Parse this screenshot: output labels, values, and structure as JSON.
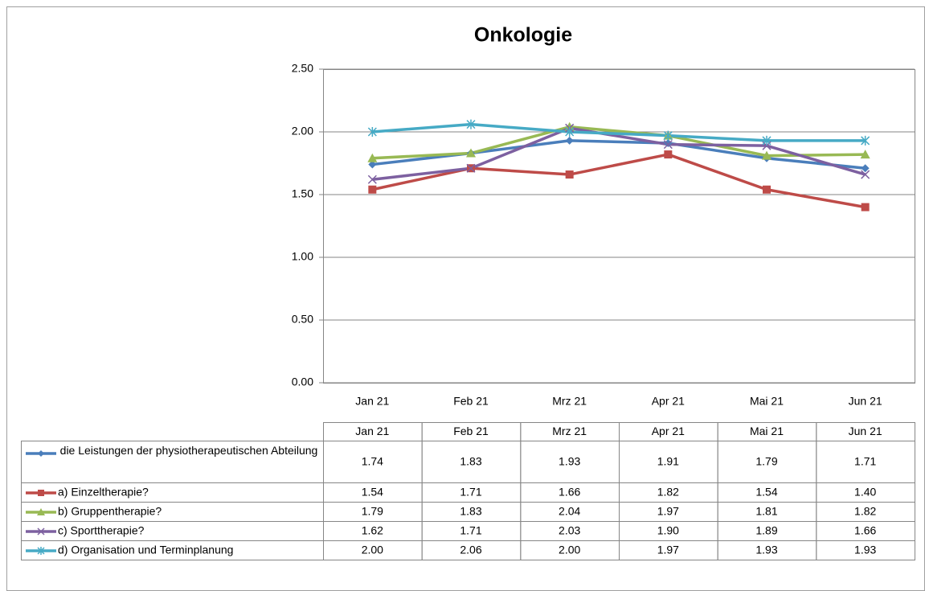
{
  "chart_data": {
    "type": "line",
    "title": "Onkologie",
    "categories": [
      "Jan 21",
      "Feb 21",
      "Mrz 21",
      "Apr 21",
      "Mai 21",
      "Jun 21"
    ],
    "ylim": [
      0,
      2.5
    ],
    "yticks": [
      {
        "value": 0,
        "label": "0.00"
      },
      {
        "value": 0.5,
        "label": "0.50"
      },
      {
        "value": 1,
        "label": "1.00"
      },
      {
        "value": 1.5,
        "label": "1.50"
      },
      {
        "value": 2,
        "label": "2.00"
      },
      {
        "value": 2.5,
        "label": "2.50"
      }
    ],
    "grid": true,
    "series": [
      {
        "name": "die Leistungen der physiotherapeutischen Abteilung",
        "color": "#4a7ebb",
        "marker": "diamond",
        "values": [
          1.74,
          1.83,
          1.93,
          1.91,
          1.79,
          1.71
        ],
        "value_labels": [
          "1.74",
          "1.83",
          "1.93",
          "1.91",
          "1.79",
          "1.71"
        ]
      },
      {
        "name": "a) Einzeltherapie?",
        "color": "#be4b48",
        "marker": "square",
        "values": [
          1.54,
          1.71,
          1.66,
          1.82,
          1.54,
          1.4
        ],
        "value_labels": [
          "1.54",
          "1.71",
          "1.66",
          "1.82",
          "1.54",
          "1.40"
        ]
      },
      {
        "name": "b) Gruppentherapie?",
        "color": "#98b954",
        "marker": "triangle",
        "values": [
          1.79,
          1.83,
          2.04,
          1.97,
          1.81,
          1.82
        ],
        "value_labels": [
          "1.79",
          "1.83",
          "2.04",
          "1.97",
          "1.81",
          "1.82"
        ]
      },
      {
        "name": "c) Sporttherapie?",
        "color": "#7d60a0",
        "marker": "x",
        "values": [
          1.62,
          1.71,
          2.03,
          1.9,
          1.89,
          1.66
        ],
        "value_labels": [
          "1.62",
          "1.71",
          "2.03",
          "1.90",
          "1.89",
          "1.66"
        ]
      },
      {
        "name": "d) Organisation und Terminplanung",
        "color": "#46aac5",
        "marker": "star",
        "values": [
          2.0,
          2.06,
          2.0,
          1.97,
          1.93,
          1.93
        ],
        "value_labels": [
          "2.00",
          "2.06",
          "2.00",
          "1.97",
          "1.93",
          "1.93"
        ]
      }
    ]
  }
}
